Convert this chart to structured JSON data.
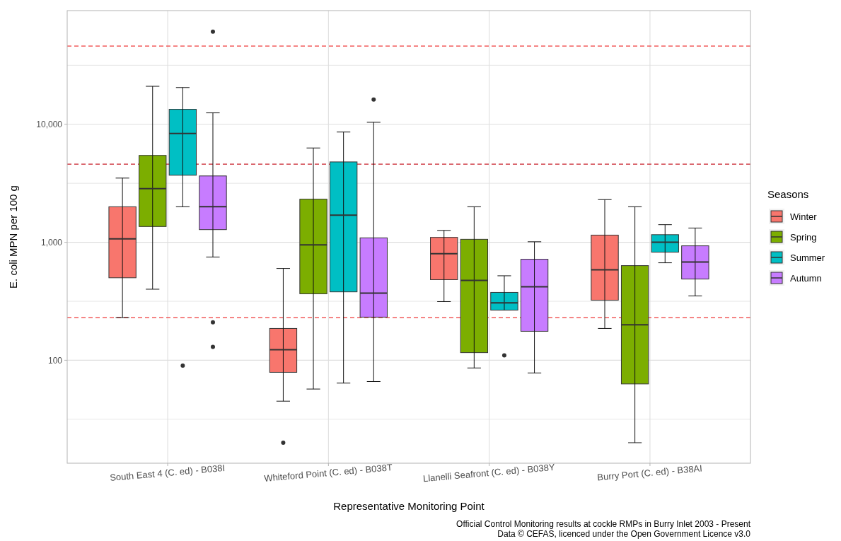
{
  "chart_data": {
    "type": "box",
    "xlabel": "Representative Monitoring Point",
    "ylabel": "E. coli MPN per 100 g",
    "legend_title": "Seasons",
    "legend": "right",
    "grid": true,
    "log": "y",
    "categories": [
      "South East 4 (C. ed) - B038I",
      "Whiteford Point (C. ed) - B038T",
      "Llanelli Seafront (C. ed) - B038Y",
      "Burry Port (C. ed) - B38AI"
    ],
    "ylim": [
      13.4,
      92000
    ],
    "yticks": [
      {
        "value": 31.6,
        "label": null
      },
      {
        "value": 100,
        "label": "100"
      },
      {
        "value": 316,
        "label": null
      },
      {
        "value": 1000,
        "label": "1,000"
      },
      {
        "value": 3162,
        "label": null
      },
      {
        "value": 10000,
        "label": "10,000"
      },
      {
        "value": 31623,
        "label": null
      }
    ],
    "series": [
      {
        "name": "Winter",
        "color": "#f8766d",
        "boxes": [
          {
            "low": 230,
            "q1": 500,
            "median": 1070,
            "q3": 2000,
            "high": 3500
          },
          {
            "low": 45,
            "q1": 79,
            "median": 123,
            "q3": 186,
            "high": 600,
            "outliers": [
              20
            ]
          },
          {
            "low": 314,
            "q1": 482,
            "median": 800,
            "q3": 1100,
            "high": 1260
          },
          {
            "low": 186,
            "q1": 323,
            "median": 584,
            "q3": 1150,
            "high": 2300
          }
        ]
      },
      {
        "name": "Spring",
        "color": "#7cae00",
        "boxes": [
          {
            "low": 400,
            "q1": 1360,
            "median": 2850,
            "q3": 5450,
            "high": 21000
          },
          {
            "low": 57,
            "q1": 366,
            "median": 950,
            "q3": 2320,
            "high": 6300
          },
          {
            "low": 86,
            "q1": 116,
            "median": 475,
            "q3": 1060,
            "high": 2000
          },
          {
            "low": 20,
            "q1": 63,
            "median": 200,
            "q3": 634,
            "high": 2000
          }
        ]
      },
      {
        "name": "Summer",
        "color": "#00bfc4",
        "boxes": [
          {
            "low": 2000,
            "q1": 3700,
            "median": 8360,
            "q3": 13400,
            "high": 20500,
            "outliers": [
              90
            ]
          },
          {
            "low": 64,
            "q1": 380,
            "median": 1700,
            "q3": 4800,
            "high": 8600
          },
          {
            "low": 266,
            "q1": 266,
            "median": 306,
            "q3": 376,
            "high": 520,
            "outliers": [
              110
            ]
          },
          {
            "low": 670,
            "q1": 824,
            "median": 1000,
            "q3": 1160,
            "high": 1410
          }
        ]
      },
      {
        "name": "Autumn",
        "color": "#c77cff",
        "boxes": [
          {
            "low": 750,
            "q1": 1280,
            "median": 2000,
            "q3": 3650,
            "high": 12500,
            "outliers": [
              61000,
              210,
              130
            ]
          },
          {
            "low": 66,
            "q1": 232,
            "median": 370,
            "q3": 1090,
            "high": 10400,
            "outliers": [
              16200
            ]
          },
          {
            "low": 78,
            "q1": 176,
            "median": 420,
            "q3": 718,
            "high": 1010
          },
          {
            "low": 351,
            "q1": 488,
            "median": 680,
            "q3": 933,
            "high": 1320
          }
        ]
      }
    ],
    "ref_lines": [
      {
        "axis": "y",
        "value": 46000,
        "color": "#f03b3b",
        "line_style": "dashed"
      },
      {
        "axis": "y",
        "value": 4600,
        "color": "#c81e28",
        "line_style": "dashed"
      },
      {
        "axis": "y",
        "value": 230,
        "color": "#f03b3b",
        "line_style": "dashed"
      }
    ],
    "annotations": [
      "Official Control Monitoring results at cockle RMPs in Burry Inlet 2003 - Present",
      "Data © CEFAS, licenced under the Open Government Licence v3.0"
    ]
  }
}
